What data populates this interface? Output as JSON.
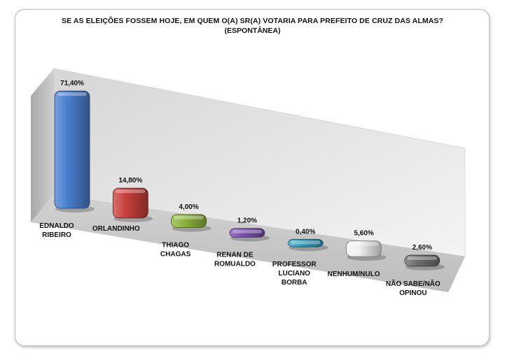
{
  "chart_data": {
    "type": "bar",
    "title": "SE AS ELEIÇÕES FOSSEM HOJE, EM QUEM O(A) SR(A) VOTARIA PARA PREFEITO DE CRUZ DAS ALMAS?",
    "subtitle": "(ESPONTÂNEA)",
    "categories": [
      [
        "EDNALDO",
        "RIBEIRO"
      ],
      [
        "ORLANDINHO"
      ],
      [
        "THIAGO",
        "CHAGAS"
      ],
      [
        "RENAN DE",
        "ROMUALDO"
      ],
      [
        "PROFESSOR",
        "LUCIANO",
        "BORBA"
      ],
      [
        "NENHUM/NULO"
      ],
      [
        "NÃO SABE/NÃO",
        "OPINOU"
      ]
    ],
    "values": [
      71.4,
      14.8,
      4.0,
      1.2,
      0.4,
      5.6,
      2.6
    ],
    "data_labels": [
      "71,40%",
      "14,80%",
      "4,00%",
      "1,20%",
      "0,40%",
      "5,60%",
      "2,60%"
    ],
    "colors": [
      "#4a7fd0",
      "#c9403c",
      "#8db53c",
      "#7a4fb0",
      "#2f9fbf",
      "#f2f2f2",
      "#6e6e6e"
    ],
    "ylim": [
      0,
      80
    ],
    "grid": false,
    "legend": "none"
  }
}
